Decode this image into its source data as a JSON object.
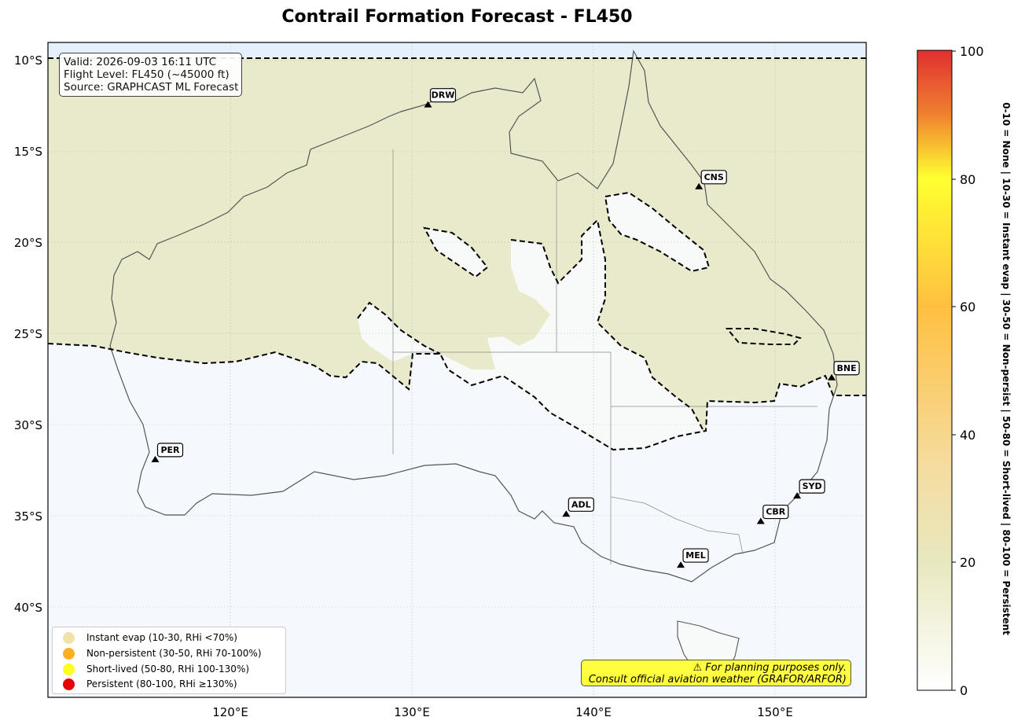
{
  "title": "Contrail Formation Forecast - FL450",
  "info": {
    "valid": "Valid: 2026-09-03 16:11 UTC",
    "flight_level": "Flight Level: FL450 (~45000 ft)",
    "source": "Source: GRAPHCAST ML Forecast"
  },
  "lat_ticks": [
    "10°S",
    "15°S",
    "20°S",
    "25°S",
    "30°S",
    "35°S",
    "40°S"
  ],
  "lon_ticks": [
    "120°E",
    "130°E",
    "140°E",
    "150°E"
  ],
  "airports": [
    {
      "code": "DRW",
      "lon": 130.9,
      "lat": -12.4
    },
    {
      "code": "CNS",
      "lon": 145.8,
      "lat": -16.9
    },
    {
      "code": "BNE",
      "lon": 153.1,
      "lat": -27.4
    },
    {
      "code": "PER",
      "lon": 115.9,
      "lat": -31.9
    },
    {
      "code": "ADL",
      "lon": 138.5,
      "lat": -34.9
    },
    {
      "code": "SYD",
      "lon": 151.2,
      "lat": -33.9
    },
    {
      "code": "CBR",
      "lon": 149.2,
      "lat": -35.3
    },
    {
      "code": "MEL",
      "lon": 144.8,
      "lat": -37.7
    }
  ],
  "legend": [
    {
      "label": "Instant evap (10-30, RHi <70%)",
      "color": "#f0e2a8"
    },
    {
      "label": "Non-persistent (30-50, RHi 70-100%)",
      "color": "#ffb020"
    },
    {
      "label": "Short-lived (50-80, RHi 100-130%)",
      "color": "#ffff20"
    },
    {
      "label": "Persistent (80-100, RHi ≥130%)",
      "color": "#e60000"
    }
  ],
  "warning": {
    "line1": "⚠ For planning purposes only.",
    "line2": "Consult official aviation weather (GRAFOR/ARFOR)"
  },
  "colorbar": {
    "ticks": [
      "0",
      "20",
      "40",
      "60",
      "80",
      "100"
    ],
    "side_label": "0-10 = None  |  10-30 = Instant evap  |  30-50 = Non-persist  |  50-80 = Short-lived  |  80-100 = Persistent",
    "colors": [
      "#ffffff",
      "#e8e8c0",
      "#f5dca0",
      "#ffc040",
      "#ffff30",
      "#f08030",
      "#e03030"
    ]
  },
  "map_extent": {
    "lon_min": 110,
    "lon_max": 155,
    "lat_min": -45,
    "lat_max": -9
  }
}
